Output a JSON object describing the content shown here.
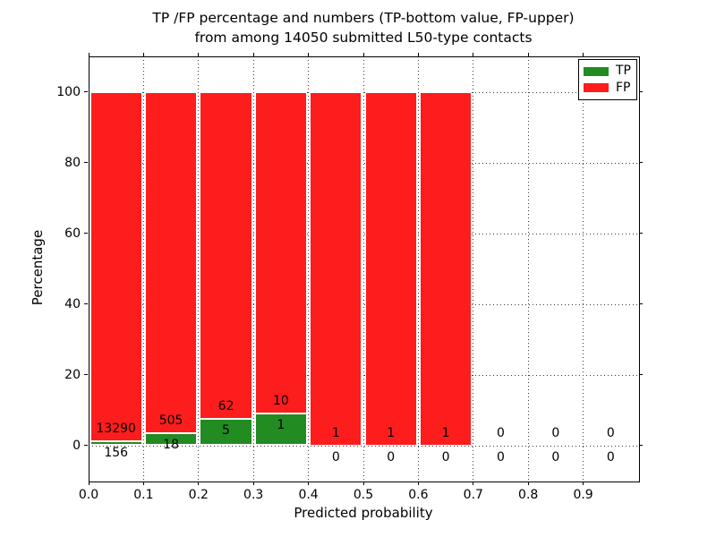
{
  "chart_data": {
    "type": "bar",
    "stacked": true,
    "title_line1": "TP /FP percentage and numbers (TP-bottom value, FP-upper)",
    "title_line2": "from among 14050 submitted L50-type contacts",
    "xlabel": "Predicted probability",
    "ylabel": "Percentage",
    "xlim": [
      0.0,
      1.0
    ],
    "ylim": [
      -10,
      110
    ],
    "grid": "dotted",
    "legend_position": "upper right",
    "bin_width": 0.1,
    "bins_start": [
      0.0,
      0.1,
      0.2,
      0.3,
      0.4,
      0.5,
      0.6,
      0.7,
      0.8,
      0.9
    ],
    "x_tick_labels": [
      "0.0",
      "0.1",
      "0.2",
      "0.3",
      "0.4",
      "0.5",
      "0.6",
      "0.7",
      "0.8",
      "0.9"
    ],
    "y_tick_values": [
      0,
      20,
      40,
      60,
      80,
      100
    ],
    "series": [
      {
        "name": "TP",
        "color": "#228b22",
        "values": [
          156,
          18,
          5,
          1,
          0,
          0,
          0,
          0,
          0,
          0
        ]
      },
      {
        "name": "FP",
        "color": "#fd1d1d",
        "values": [
          13290,
          505,
          62,
          10,
          1,
          1,
          1,
          0,
          0,
          0
        ]
      }
    ],
    "note": "Each bin with total>0 is drawn stacked to 100%; TP percent = tp/(tp+fp)*100"
  }
}
